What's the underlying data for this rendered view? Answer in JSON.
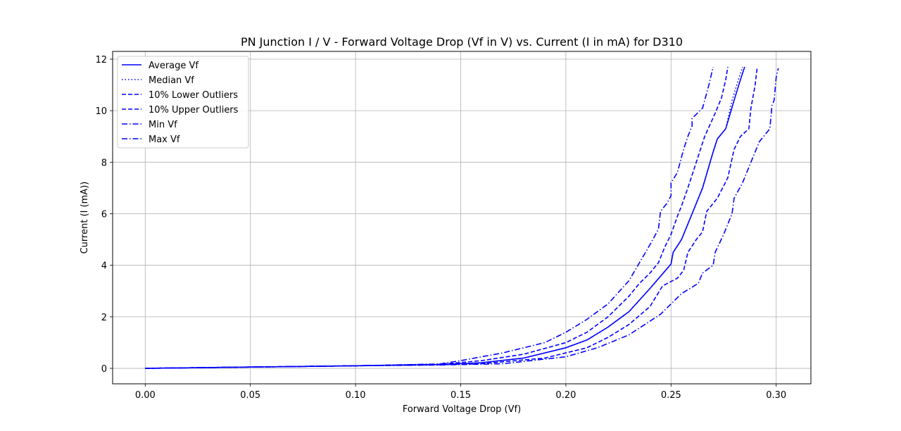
{
  "chart_data": {
    "type": "line",
    "title": "PN Junction I / V - Forward Voltage Drop (Vf in V) vs. Current (I in mA) for D310",
    "xlabel": "Forward Voltage Drop (Vf)",
    "ylabel": "Current (I (mA))",
    "xlim": [
      -0.0155,
      0.3165
    ],
    "ylim": [
      -0.6,
      12.3
    ],
    "xticks": [
      0.0,
      0.05,
      0.1,
      0.15,
      0.2,
      0.25,
      0.3
    ],
    "xtick_labels": [
      "0.00",
      "0.05",
      "0.10",
      "0.15",
      "0.20",
      "0.25",
      "0.30"
    ],
    "yticks": [
      0,
      2,
      4,
      6,
      8,
      10,
      12
    ],
    "ytick_labels": [
      "0",
      "2",
      "4",
      "6",
      "8",
      "10",
      "12"
    ],
    "grid": true,
    "legend_position": "upper-left",
    "line_color": "#0000ff",
    "series": [
      {
        "name": "Average Vf",
        "style": "solid",
        "points": [
          [
            0,
            0
          ],
          [
            0.05,
            0.05
          ],
          [
            0.1,
            0.1
          ],
          [
            0.14,
            0.15
          ],
          [
            0.16,
            0.22
          ],
          [
            0.18,
            0.4
          ],
          [
            0.2,
            0.8
          ],
          [
            0.21,
            1.1
          ],
          [
            0.22,
            1.6
          ],
          [
            0.23,
            2.2
          ],
          [
            0.24,
            3.1
          ],
          [
            0.25,
            4.05
          ],
          [
            0.251,
            4.5
          ],
          [
            0.255,
            5.0
          ],
          [
            0.26,
            6.0
          ],
          [
            0.265,
            7.0
          ],
          [
            0.27,
            8.4
          ],
          [
            0.272,
            8.9
          ],
          [
            0.276,
            9.3
          ],
          [
            0.28,
            10.4
          ],
          [
            0.283,
            11.2
          ],
          [
            0.285,
            11.7
          ]
        ]
      },
      {
        "name": "Median Vf",
        "style": "dotted",
        "points": [
          [
            0,
            0
          ],
          [
            0.05,
            0.05
          ],
          [
            0.1,
            0.1
          ],
          [
            0.14,
            0.15
          ],
          [
            0.16,
            0.22
          ],
          [
            0.18,
            0.4
          ],
          [
            0.2,
            0.8
          ],
          [
            0.21,
            1.1
          ],
          [
            0.22,
            1.6
          ],
          [
            0.23,
            2.2
          ],
          [
            0.24,
            3.1
          ],
          [
            0.25,
            4.05
          ],
          [
            0.251,
            4.5
          ],
          [
            0.255,
            5.0
          ],
          [
            0.26,
            6.0
          ],
          [
            0.265,
            7.0
          ],
          [
            0.27,
            8.4
          ],
          [
            0.272,
            8.9
          ],
          [
            0.276,
            9.3
          ],
          [
            0.279,
            10.4
          ],
          [
            0.282,
            11.2
          ],
          [
            0.284,
            11.7
          ]
        ]
      },
      {
        "name": "10% Lower Outliers",
        "style": "dashed",
        "points": [
          [
            0,
            0
          ],
          [
            0.05,
            0.05
          ],
          [
            0.1,
            0.1
          ],
          [
            0.14,
            0.14
          ],
          [
            0.16,
            0.18
          ],
          [
            0.19,
            0.4
          ],
          [
            0.21,
            0.8
          ],
          [
            0.22,
            1.2
          ],
          [
            0.23,
            1.7
          ],
          [
            0.24,
            2.4
          ],
          [
            0.246,
            3.2
          ],
          [
            0.253,
            3.5
          ],
          [
            0.256,
            3.8
          ],
          [
            0.258,
            4.5
          ],
          [
            0.262,
            5.0
          ],
          [
            0.265,
            5.3
          ],
          [
            0.267,
            6.1
          ],
          [
            0.272,
            6.6
          ],
          [
            0.277,
            7.4
          ],
          [
            0.28,
            8.5
          ],
          [
            0.283,
            9.0
          ],
          [
            0.287,
            9.3
          ],
          [
            0.288,
            10.1
          ],
          [
            0.29,
            11.0
          ],
          [
            0.291,
            11.7
          ]
        ]
      },
      {
        "name": "10% Upper Outliers",
        "style": "dashed",
        "points": [
          [
            0,
            0
          ],
          [
            0.05,
            0.05
          ],
          [
            0.1,
            0.1
          ],
          [
            0.14,
            0.16
          ],
          [
            0.16,
            0.3
          ],
          [
            0.18,
            0.55
          ],
          [
            0.2,
            1.0
          ],
          [
            0.21,
            1.4
          ],
          [
            0.22,
            2.0
          ],
          [
            0.23,
            2.8
          ],
          [
            0.235,
            3.3
          ],
          [
            0.24,
            3.7
          ],
          [
            0.244,
            4.1
          ],
          [
            0.247,
            4.7
          ],
          [
            0.25,
            5.2
          ],
          [
            0.253,
            5.9
          ],
          [
            0.255,
            6.3
          ],
          [
            0.258,
            7.0
          ],
          [
            0.262,
            8.0
          ],
          [
            0.266,
            9.0
          ],
          [
            0.271,
            9.9
          ],
          [
            0.274,
            10.5
          ],
          [
            0.276,
            11.2
          ],
          [
            0.277,
            11.7
          ]
        ]
      },
      {
        "name": "Min Vf",
        "style": "dashdot",
        "points": [
          [
            0,
            0
          ],
          [
            0.05,
            0.05
          ],
          [
            0.1,
            0.1
          ],
          [
            0.14,
            0.13
          ],
          [
            0.17,
            0.18
          ],
          [
            0.2,
            0.45
          ],
          [
            0.215,
            0.8
          ],
          [
            0.23,
            1.3
          ],
          [
            0.245,
            2.1
          ],
          [
            0.255,
            2.9
          ],
          [
            0.263,
            3.3
          ],
          [
            0.265,
            3.7
          ],
          [
            0.27,
            4.0
          ],
          [
            0.271,
            4.5
          ],
          [
            0.275,
            5.2
          ],
          [
            0.279,
            6.0
          ],
          [
            0.28,
            6.6
          ],
          [
            0.284,
            7.2
          ],
          [
            0.288,
            8.0
          ],
          [
            0.292,
            8.8
          ],
          [
            0.297,
            9.3
          ],
          [
            0.298,
            10.2
          ],
          [
            0.299,
            10.4
          ],
          [
            0.3,
            11.3
          ],
          [
            0.301,
            11.65
          ]
        ]
      },
      {
        "name": "Max Vf",
        "style": "dashdot",
        "points": [
          [
            0,
            0
          ],
          [
            0.05,
            0.05
          ],
          [
            0.1,
            0.1
          ],
          [
            0.14,
            0.17
          ],
          [
            0.15,
            0.3
          ],
          [
            0.16,
            0.45
          ],
          [
            0.17,
            0.6
          ],
          [
            0.19,
            1.0
          ],
          [
            0.2,
            1.4
          ],
          [
            0.21,
            1.9
          ],
          [
            0.22,
            2.5
          ],
          [
            0.23,
            3.4
          ],
          [
            0.235,
            4.1
          ],
          [
            0.24,
            4.8
          ],
          [
            0.244,
            5.4
          ],
          [
            0.245,
            6.1
          ],
          [
            0.248,
            6.4
          ],
          [
            0.25,
            6.7
          ],
          [
            0.25,
            7.2
          ],
          [
            0.253,
            7.6
          ],
          [
            0.256,
            8.5
          ],
          [
            0.258,
            9.0
          ],
          [
            0.26,
            9.4
          ],
          [
            0.26,
            9.7
          ],
          [
            0.265,
            10.1
          ],
          [
            0.268,
            11.0
          ],
          [
            0.27,
            11.7
          ]
        ]
      }
    ]
  }
}
